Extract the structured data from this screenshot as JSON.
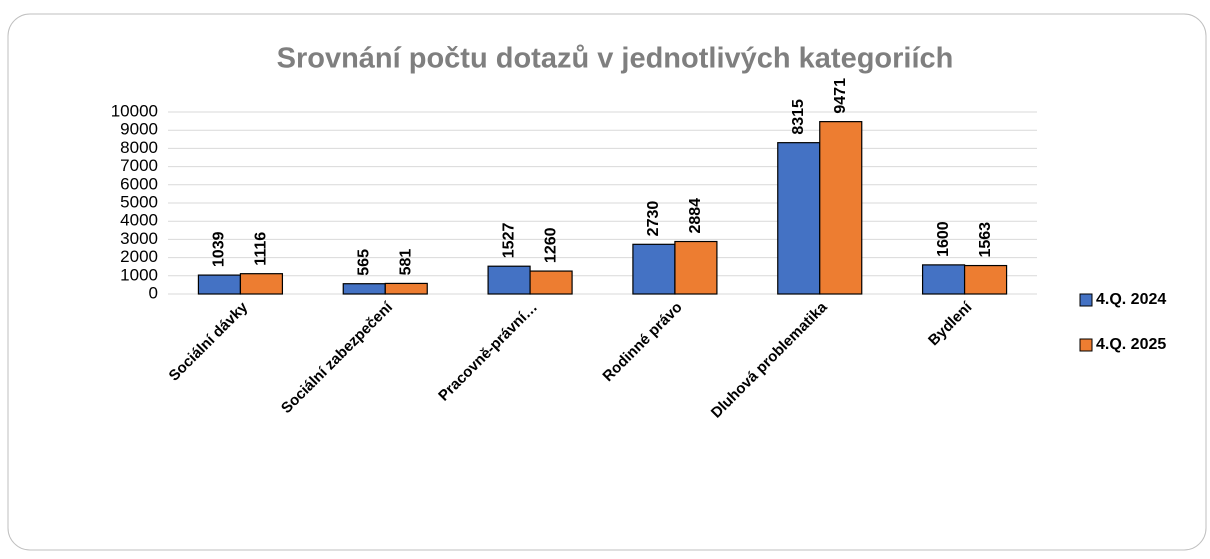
{
  "chart_data": {
    "type": "bar",
    "title": "Srovnání počtu dotazů v jednotlivých kategoriích",
    "categories": [
      "Sociální dávky",
      "Sociální zabezpečení",
      "Pracovně-právní…",
      "Rodinné právo",
      "Dluhová problematika",
      "Bydlení"
    ],
    "series": [
      {
        "name": "4.Q. 2024",
        "color": "#4472c4",
        "values": [
          1039,
          565,
          1527,
          2730,
          8315,
          1600
        ]
      },
      {
        "name": "4.Q. 2025",
        "color": "#ed7d31",
        "values": [
          1116,
          581,
          1260,
          2884,
          9471,
          1563
        ]
      }
    ],
    "ylim": [
      0,
      10000
    ],
    "yticks": [
      0,
      1000,
      2000,
      3000,
      4000,
      5000,
      6000,
      7000,
      8000,
      9000,
      10000
    ],
    "grid": true,
    "legend": "right"
  }
}
